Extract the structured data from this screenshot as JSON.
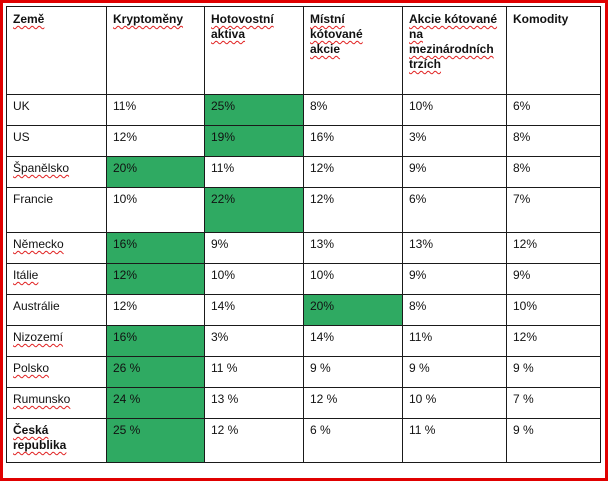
{
  "table": {
    "headers": [
      "Země",
      "Kryptoměny",
      "Hotovostní aktiva",
      "Místní kótované akcie",
      "Akcie kótované na mezinárodních trzích",
      "Komodity"
    ],
    "highlight_color": "#2faa62",
    "border_color": "#e00000",
    "rows": [
      {
        "country": "UK",
        "values": [
          "11%",
          "25%",
          "8%",
          "10%",
          "6%"
        ],
        "highlight": 1
      },
      {
        "country": "US",
        "values": [
          "12%",
          "19%",
          "16%",
          "3%",
          "8%"
        ],
        "highlight": 1
      },
      {
        "country": "Španělsko",
        "values": [
          "20%",
          "11%",
          "12%",
          "9%",
          "8%"
        ],
        "highlight": 0
      },
      {
        "country": "Francie",
        "values": [
          "10%",
          "22%",
          "12%",
          "6%",
          "7%"
        ],
        "highlight": 1
      },
      {
        "country": "Německo",
        "values": [
          "16%",
          "9%",
          "13%",
          "13%",
          "12%"
        ],
        "highlight": 0
      },
      {
        "country": "Itálie",
        "values": [
          "12%",
          "10%",
          "10%",
          "9%",
          "9%"
        ],
        "highlight": 0
      },
      {
        "country": "Austrálie",
        "values": [
          "12%",
          "14%",
          "20%",
          "8%",
          "10%"
        ],
        "highlight": 2
      },
      {
        "country": "Nizozemí",
        "values": [
          "16%",
          "3%",
          "14%",
          "11%",
          "12%"
        ],
        "highlight": 0
      },
      {
        "country": "Polsko",
        "values": [
          "26 %",
          "11 %",
          "9 %",
          "9 %",
          "9 %"
        ],
        "highlight": 0
      },
      {
        "country": "Rumunsko",
        "values": [
          "24 %",
          "13 %",
          "12 %",
          "10 %",
          "7 %"
        ],
        "highlight": 0
      },
      {
        "country": "Česká republika",
        "values": [
          "25 %",
          "12 %",
          "6 %",
          "11 %",
          "9 %"
        ],
        "highlight": 0
      }
    ]
  }
}
